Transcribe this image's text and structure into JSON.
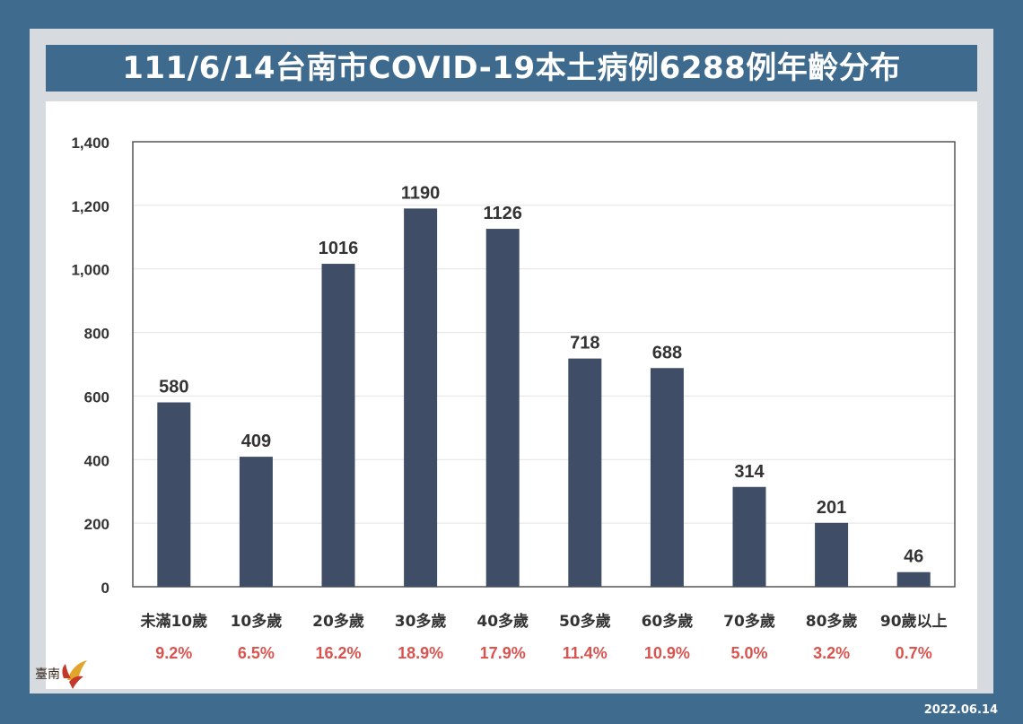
{
  "title": "111/6/14台南市COVID-19本土病例6288例年齡分布",
  "date": "2022.06.14",
  "logo_text": "臺南",
  "colors": {
    "bar": "#3f4e66",
    "percent": "#d9534f",
    "frame": "#3f6b8f",
    "title_bg": "#3d6a8d"
  },
  "chart_data": {
    "type": "bar",
    "categories": [
      "未滿10歲",
      "10多歲",
      "20多歲",
      "30多歲",
      "40多歲",
      "50多歲",
      "60多歲",
      "70多歲",
      "80多歲",
      "90歲以上"
    ],
    "values": [
      580,
      409,
      1016,
      1190,
      1126,
      718,
      688,
      314,
      201,
      46
    ],
    "percent_labels": [
      "9.2%",
      "6.5%",
      "16.2%",
      "18.9%",
      "17.9%",
      "11.4%",
      "10.9%",
      "5.0%",
      "3.2%",
      "0.7%"
    ],
    "ylim": [
      0,
      1400
    ],
    "yticks": [
      0,
      200,
      400,
      600,
      800,
      1000,
      1200,
      1400
    ],
    "ytick_labels": [
      "0",
      "200",
      "400",
      "600",
      "800",
      "1,000",
      "1,200",
      "1,400"
    ],
    "grid": true,
    "legend": false
  }
}
